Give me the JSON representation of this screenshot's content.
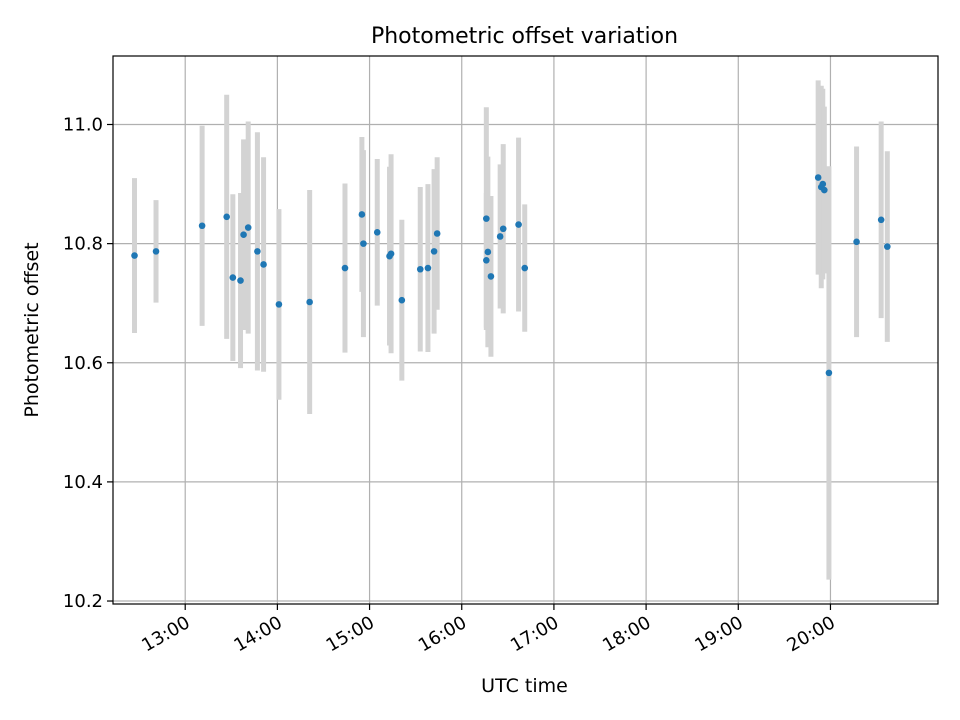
{
  "chart_data": {
    "type": "scatter",
    "title": "Photometric offset variation",
    "xlabel": "UTC time",
    "ylabel": "Photometric offset",
    "grid": true,
    "x_unit": "UTC",
    "xlim": [
      "12:13",
      "21:10"
    ],
    "ylim": [
      10.195,
      11.115
    ],
    "x_ticks": [
      "13:00",
      "14:00",
      "15:00",
      "16:00",
      "17:00",
      "18:00",
      "19:00",
      "20:00"
    ],
    "y_ticks": [
      "10.2",
      "10.4",
      "10.6",
      "10.8",
      "11.0"
    ],
    "error_bar_color": "#d3d3d3",
    "point_color": "#1f77b4",
    "series": [
      {
        "points": [
          {
            "x": "12:27",
            "y": 10.78,
            "err": 0.13
          },
          {
            "x": "12:41",
            "y": 10.787,
            "err": 0.086
          },
          {
            "x": "13:11",
            "y": 10.83,
            "err": 0.168
          },
          {
            "x": "13:27",
            "y": 10.845,
            "err": 0.205
          },
          {
            "x": "13:31",
            "y": 10.743,
            "err": 0.14
          },
          {
            "x": "13:36",
            "y": 10.738,
            "err": 0.147
          },
          {
            "x": "13:38",
            "y": 10.815,
            "err": 0.16
          },
          {
            "x": "13:41",
            "y": 10.827,
            "err": 0.178
          },
          {
            "x": "13:47",
            "y": 10.787,
            "err": 0.2
          },
          {
            "x": "13:51",
            "y": 10.765,
            "err": 0.18
          },
          {
            "x": "14:01",
            "y": 10.698,
            "err": 0.16
          },
          {
            "x": "14:21",
            "y": 10.702,
            "err": 0.188
          },
          {
            "x": "14:44",
            "y": 10.759,
            "err": 0.142
          },
          {
            "x": "14:55",
            "y": 10.849,
            "err": 0.13
          },
          {
            "x": "14:56",
            "y": 10.8,
            "err": 0.157
          },
          {
            "x": "15:05",
            "y": 10.819,
            "err": 0.123
          },
          {
            "x": "15:13",
            "y": 10.779,
            "err": 0.15
          },
          {
            "x": "15:14",
            "y": 10.783,
            "err": 0.167
          },
          {
            "x": "15:21",
            "y": 10.705,
            "err": 0.135
          },
          {
            "x": "15:33",
            "y": 10.757,
            "err": 0.138
          },
          {
            "x": "15:38",
            "y": 10.759,
            "err": 0.141
          },
          {
            "x": "15:42",
            "y": 10.787,
            "err": 0.138
          },
          {
            "x": "15:44",
            "y": 10.817,
            "err": 0.128
          },
          {
            "x": "16:16",
            "y": 10.842,
            "err": 0.187
          },
          {
            "x": "16:16",
            "y": 10.772,
            "err": 0.113
          },
          {
            "x": "16:17",
            "y": 10.786,
            "err": 0.16
          },
          {
            "x": "16:19",
            "y": 10.745,
            "err": 0.135
          },
          {
            "x": "16:25",
            "y": 10.812,
            "err": 0.121
          },
          {
            "x": "16:27",
            "y": 10.825,
            "err": 0.142
          },
          {
            "x": "16:37",
            "y": 10.832,
            "err": 0.146
          },
          {
            "x": "16:41",
            "y": 10.759,
            "err": 0.107
          },
          {
            "x": "19:52",
            "y": 10.911,
            "err": 0.163
          },
          {
            "x": "19:54",
            "y": 10.895,
            "err": 0.17
          },
          {
            "x": "19:55",
            "y": 10.9,
            "err": 0.16
          },
          {
            "x": "19:56",
            "y": 10.89,
            "err": 0.14
          },
          {
            "x": "19:59",
            "y": 10.583,
            "err": 0.347
          },
          {
            "x": "20:17",
            "y": 10.803,
            "err": 0.16
          },
          {
            "x": "20:33",
            "y": 10.84,
            "err": 0.165
          },
          {
            "x": "20:37",
            "y": 10.795,
            "err": 0.16
          }
        ]
      }
    ]
  }
}
